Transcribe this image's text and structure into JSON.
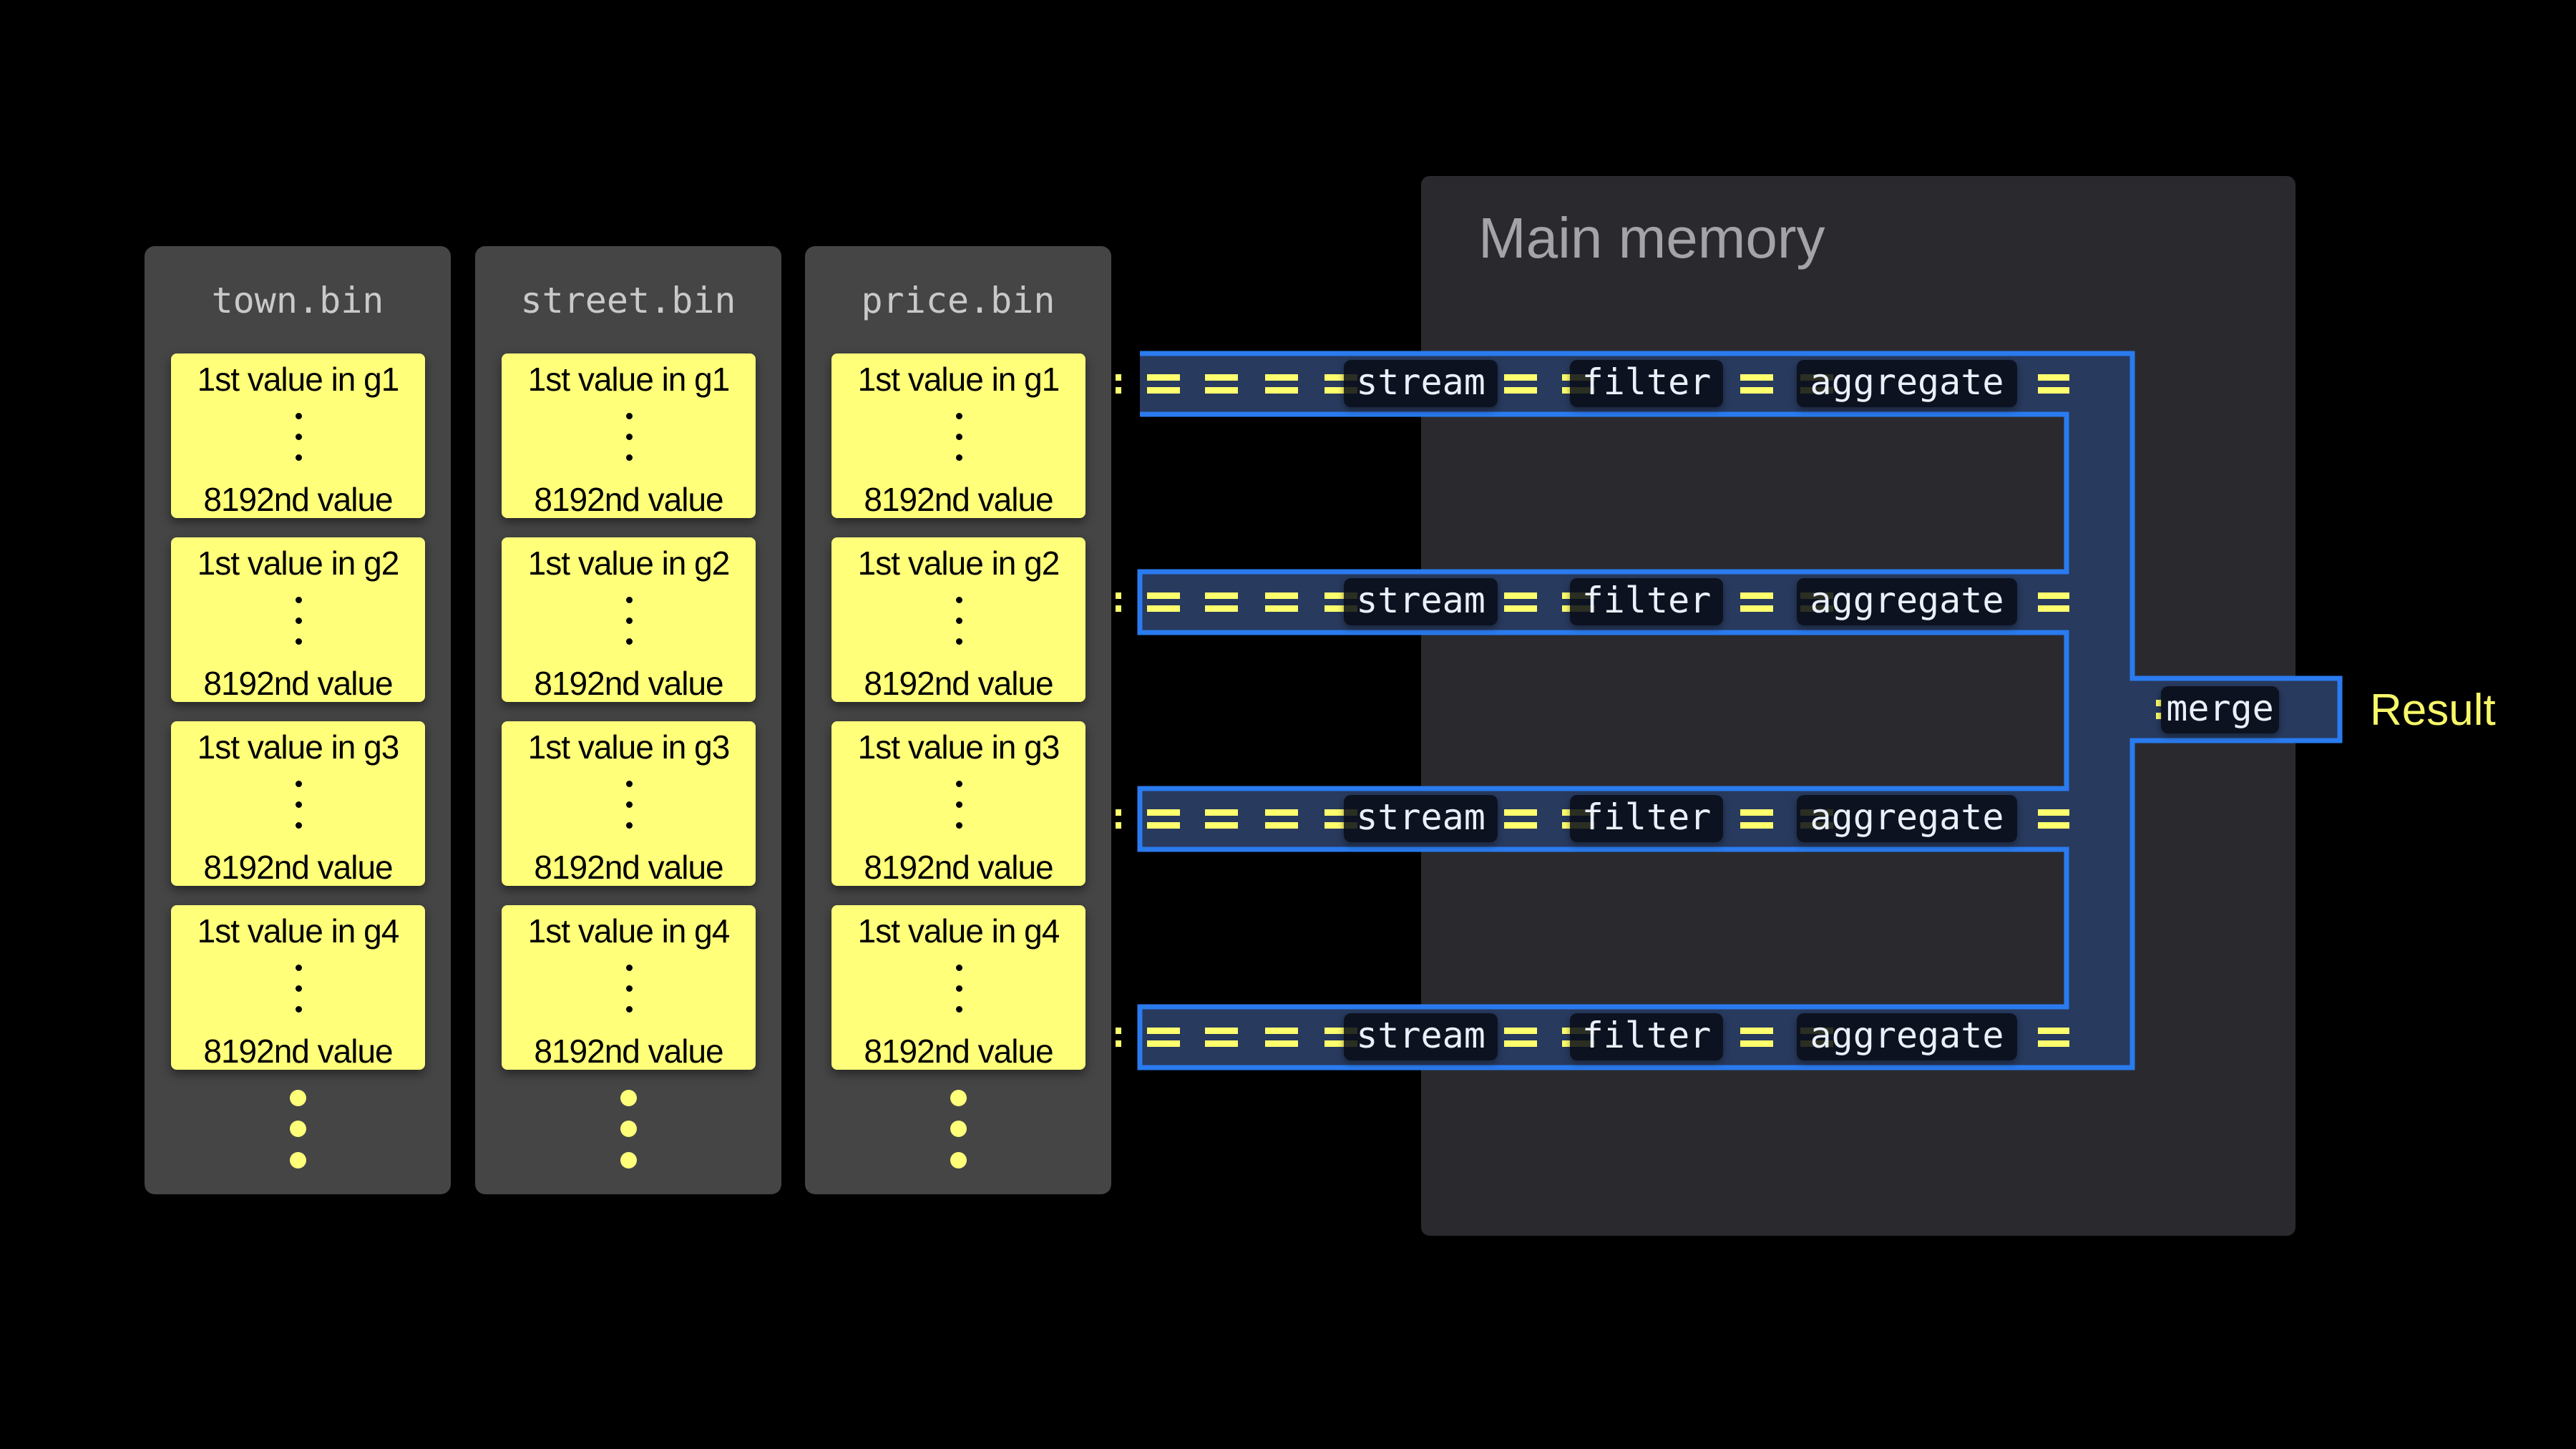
{
  "files": [
    {
      "name": "town.bin"
    },
    {
      "name": "street.bin"
    },
    {
      "name": "price.bin"
    }
  ],
  "granules": [
    {
      "first": "1st value in g1",
      "last": "8192nd value"
    },
    {
      "first": "1st value in g2",
      "last": "8192nd value"
    },
    {
      "first": "1st value in g3",
      "last": "8192nd value"
    },
    {
      "first": "1st value in g4",
      "last": "8192nd value"
    }
  ],
  "main_memory": {
    "title": "Main memory"
  },
  "pipeline": {
    "lanes": 4,
    "stages": [
      "stream",
      "filter",
      "aggregate"
    ],
    "merge": "merge",
    "result": "Result"
  },
  "colors": {
    "granule": "#ffff7a",
    "file_panel": "#454545",
    "memory_panel": "#2a2a2e",
    "pipe_fill": "#283a5e",
    "pipe_border": "#2a7bef",
    "flow_dash": "#ffff6e",
    "result": "#f7f76a"
  }
}
